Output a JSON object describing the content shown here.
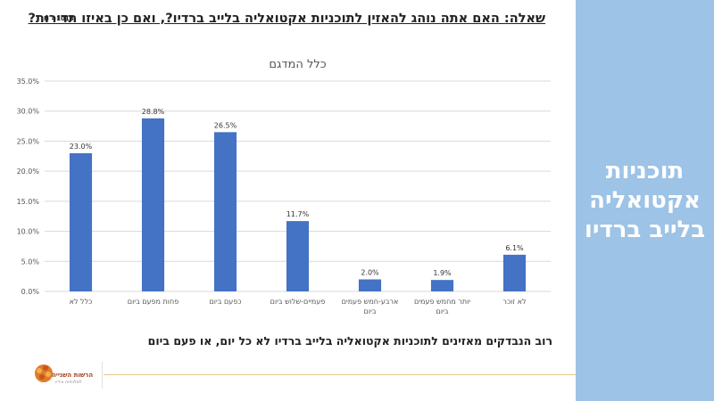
{
  "question": "שאלה: האם אתה נוהג להאזין לתוכניות אקטואליה בלייב ברדיו?, ואם כן באיזו תדירות?",
  "sample_size": "N =1013",
  "sidebar_title": [
    "תוכניות",
    "אקטואליה",
    "בלייב ברדיו"
  ],
  "conclusion": "רוב הנבדקים מאזינים לתוכניות אקטואליה בלייב ברדיו לא כל יום, או פעם ביום",
  "logo": {
    "name": "הרשות השנייה",
    "tagline": "לטלוויזיה ורדיו"
  },
  "colors": {
    "bar": "#4472c4",
    "sidebar": "#9dc3e6",
    "footer_line": "#e3c98a"
  },
  "chart_data": {
    "type": "bar",
    "title": "כלל המדגם",
    "categories": [
      [
        "כלל לא"
      ],
      [
        "פחות מפעם ביום"
      ],
      [
        "כפעם ביום"
      ],
      [
        "פעמיים-שלוש ביום"
      ],
      [
        "ארבע-חמש פעמים",
        "ביום"
      ],
      [
        "יותר מחמש פעמים",
        "ביום"
      ],
      [
        "לא זוכר"
      ]
    ],
    "values": [
      23.0,
      28.8,
      26.5,
      11.7,
      2.0,
      1.9,
      6.1
    ],
    "value_labels": [
      "23.0%",
      "28.8%",
      "26.5%",
      "11.7%",
      "2.0%",
      "1.9%",
      "6.1%"
    ],
    "ylim": [
      0,
      35
    ],
    "yticks": [
      0,
      5,
      10,
      15,
      20,
      25,
      30,
      35
    ],
    "ytick_labels": [
      "0.0%",
      "5.0%",
      "10.0%",
      "15.0%",
      "20.0%",
      "25.0%",
      "30.0%",
      "35.0%"
    ],
    "grid": true,
    "legend": "none"
  }
}
